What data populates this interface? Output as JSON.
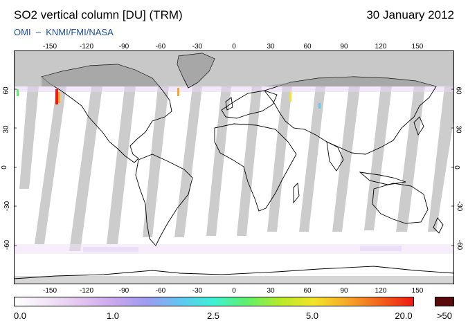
{
  "header": {
    "title": "SO2 vertical column [DU] (TRM)",
    "date": "30 January 2012",
    "subtitle": "OMI  –  KNMI/FMI/NASA"
  },
  "map": {
    "projection": "equirectangular",
    "lon_ticks": [
      "-150",
      "-120",
      "-90",
      "-60",
      "-30",
      "0",
      "30",
      "60",
      "90",
      "120",
      "150"
    ],
    "lat_ticks": [
      "60",
      "30",
      "0",
      "-30",
      "-60"
    ],
    "colors": {
      "no_data": "#c8c8c8",
      "swath_gap": "#bcbcbc",
      "background": "#ffffff",
      "coastline": "#000000"
    }
  },
  "colorbar": {
    "labels": [
      "0.0",
      "1.0",
      "2.5",
      "5.0",
      "20.0",
      ">50"
    ],
    "over_color": "#5a0a0a",
    "gradient_colors": [
      "#ffffff",
      "#f2e4f6",
      "#e3c4ef",
      "#c9a7ee",
      "#9d9cf0",
      "#5fc6f2",
      "#3cf2d4",
      "#5ef06a",
      "#b7ea27",
      "#f2e428",
      "#f6a928",
      "#f2641c",
      "#ee1a12"
    ]
  }
}
